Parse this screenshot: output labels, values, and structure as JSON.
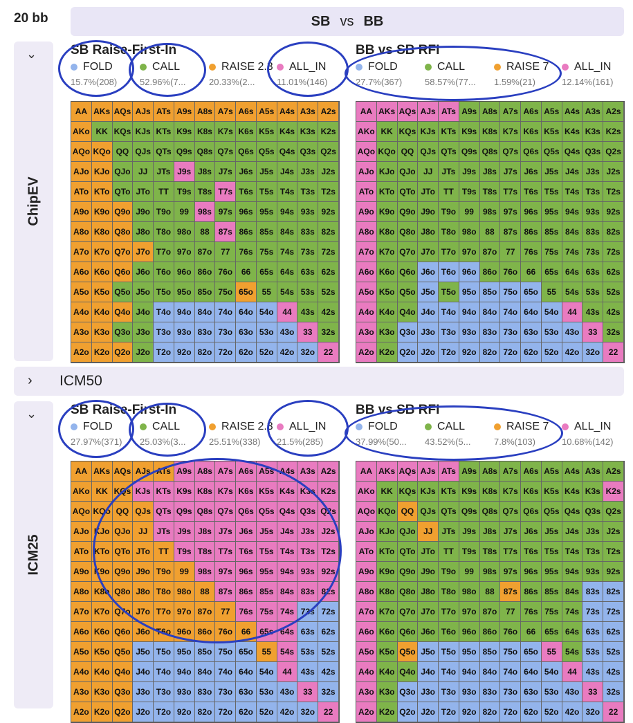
{
  "stack_label": "20 bb",
  "header": {
    "left": "SB",
    "vs": "vs",
    "right": "BB"
  },
  "sections": [
    {
      "label": "ChipEV",
      "expanded": true
    },
    {
      "label": "ICM50",
      "expanded": false
    },
    {
      "label": "ICM25",
      "expanded": true
    }
  ],
  "colors": {
    "fold": "#93b4ec",
    "call": "#7fb44a",
    "raise": "#f0a030",
    "allin": "#e97bc0"
  },
  "panels": {
    "chip_sb": {
      "title": "SB Raise-First-In",
      "legend": [
        {
          "name": "FOLD",
          "pct": "15.7%(208)"
        },
        {
          "name": "CALL",
          "pct": "52.96%(7..."
        },
        {
          "name": "RAISE 2.3",
          "pct": "20.33%(2..."
        },
        {
          "name": "ALL_IN",
          "pct": "11.01%(146)"
        }
      ]
    },
    "chip_bb": {
      "title": "BB vs SB RFI",
      "legend": [
        {
          "name": "FOLD",
          "pct": "27.7%(367)"
        },
        {
          "name": "CALL",
          "pct": "58.57%(77..."
        },
        {
          "name": "RAISE 7",
          "pct": "1.59%(21)"
        },
        {
          "name": "ALL_IN",
          "pct": "12.14%(161)"
        }
      ]
    },
    "icm_sb": {
      "title": "SB Raise-First-In",
      "legend": [
        {
          "name": "FOLD",
          "pct": "27.97%(371)"
        },
        {
          "name": "CALL",
          "pct": "25.03%(3..."
        },
        {
          "name": "RAISE 2.3",
          "pct": "25.51%(338)"
        },
        {
          "name": "ALL_IN",
          "pct": "21.5%(285)"
        }
      ]
    },
    "icm_bb": {
      "title": "BB vs SB RFI",
      "legend": [
        {
          "name": "FOLD",
          "pct": "37.99%(50..."
        },
        {
          "name": "CALL",
          "pct": "43.52%(5..."
        },
        {
          "name": "RAISE 7",
          "pct": "7.8%(103)"
        },
        {
          "name": "ALL_IN",
          "pct": "10.68%(142)"
        }
      ]
    }
  },
  "hands": [
    [
      "AA",
      "AKs",
      "AQs",
      "AJs",
      "ATs",
      "A9s",
      "A8s",
      "A7s",
      "A6s",
      "A5s",
      "A4s",
      "A3s",
      "A2s"
    ],
    [
      "AKo",
      "KK",
      "KQs",
      "KJs",
      "KTs",
      "K9s",
      "K8s",
      "K7s",
      "K6s",
      "K5s",
      "K4s",
      "K3s",
      "K2s"
    ],
    [
      "AQo",
      "KQo",
      "QQ",
      "QJs",
      "QTs",
      "Q9s",
      "Q8s",
      "Q7s",
      "Q6s",
      "Q5s",
      "Q4s",
      "Q3s",
      "Q2s"
    ],
    [
      "AJo",
      "KJo",
      "QJo",
      "JJ",
      "JTs",
      "J9s",
      "J8s",
      "J7s",
      "J6s",
      "J5s",
      "J4s",
      "J3s",
      "J2s"
    ],
    [
      "ATo",
      "KTo",
      "QTo",
      "JTo",
      "TT",
      "T9s",
      "T8s",
      "T7s",
      "T6s",
      "T5s",
      "T4s",
      "T3s",
      "T2s"
    ],
    [
      "A9o",
      "K9o",
      "Q9o",
      "J9o",
      "T9o",
      "99",
      "98s",
      "97s",
      "96s",
      "95s",
      "94s",
      "93s",
      "92s"
    ],
    [
      "A8o",
      "K8o",
      "Q8o",
      "J8o",
      "T8o",
      "98o",
      "88",
      "87s",
      "86s",
      "85s",
      "84s",
      "83s",
      "82s"
    ],
    [
      "A7o",
      "K7o",
      "Q7o",
      "J7o",
      "T7o",
      "97o",
      "87o",
      "77",
      "76s",
      "75s",
      "74s",
      "73s",
      "72s"
    ],
    [
      "A6o",
      "K6o",
      "Q6o",
      "J6o",
      "T6o",
      "96o",
      "86o",
      "76o",
      "66",
      "65s",
      "64s",
      "63s",
      "62s"
    ],
    [
      "A5o",
      "K5o",
      "Q5o",
      "J5o",
      "T5o",
      "95o",
      "85o",
      "75o",
      "65o",
      "55",
      "54s",
      "53s",
      "52s"
    ],
    [
      "A4o",
      "K4o",
      "Q4o",
      "J4o",
      "T4o",
      "94o",
      "84o",
      "74o",
      "64o",
      "54o",
      "44",
      "43s",
      "42s"
    ],
    [
      "A3o",
      "K3o",
      "Q3o",
      "J3o",
      "T3o",
      "93o",
      "83o",
      "73o",
      "63o",
      "53o",
      "43o",
      "33",
      "32s"
    ],
    [
      "A2o",
      "K2o",
      "Q2o",
      "J2o",
      "T2o",
      "92o",
      "82o",
      "72o",
      "62o",
      "52o",
      "42o",
      "32o",
      "22"
    ]
  ],
  "grids": {
    "chip_sb": [
      "RRRRRRRRRRRRR",
      "RCCCCCCCCCCCC",
      "RRCCCCCCCCCCC",
      "RRCCCMCCCCCCC",
      "RRCCCCCMCCCCC",
      "RRRCCCMCCCCCC",
      "RRRCCCCMCCCCC",
      "RRRRCCCCCCCCC",
      "RRRCCCCCCCCCC",
      "RRCCCCCCRCCCC",
      "RRRCFFFFFFMCC",
      "RRCCFFFFFFFMC",
      "RRRCFFFFFFFFM"
    ],
    "chip_bb": [
      "MMMMMCCCCCCCC",
      "MCCCCCCCCCCCC",
      "MCCCCCCCCCCCC",
      "MCCCCCCCCCCCC",
      "MCCCCCCCCCCCC",
      "MCCCCCCCCCCCC",
      "MCCCCCCCCCCCC",
      "MCCCCCCCCCCCC",
      "MCCFFFCCCCCCC",
      "MCCFCFFFFCCCC",
      "MCCFFFFFFFMCC",
      "MCFFFFFFFFFMC",
      "MCFFFFFFFFFFM"
    ],
    "icm_sb": [
      "RRRRRMMMMMMMM",
      "RRRMMMMMMMMMM",
      "RRRRMMMMMMMMM",
      "RRRRMMMMMMMMM",
      "RRRRRMMMMMMMM",
      "RRRRRRMMMMMMM",
      "RRRRRRRMMMMMM",
      "RRRRRRRRMMMFF",
      "RRRRRRRRRMMFF",
      "RRRFFFFFFRMFF",
      "RRRFFFFFFFMFF",
      "RRRFFFFFFFFMF",
      "RRRFFFFFFFFFM"
    ],
    "icm_bb": [
      "MMMMMCCCCCCCC",
      "MCCCCCCCCCCCM",
      "MCRCCCCCCCCCC",
      "MCCRCCCCCCCCC",
      "MCCCCCCCCCCCC",
      "MCCCCCCCCCCCC",
      "MCCCCCCRCCCFF",
      "MCCCCCCCCCCFF",
      "MCCCCCCCCCCFF",
      "MCRFFFFFFMCFF",
      "MCCFFFFFFFMFF",
      "MCFFFFFFFFFMF",
      "MCFFFFFFFFFFM"
    ]
  }
}
